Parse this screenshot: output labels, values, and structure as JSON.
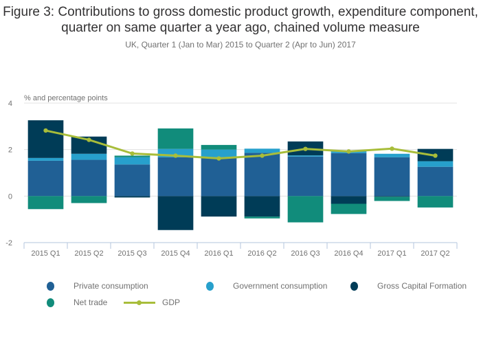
{
  "chart_data": {
    "type": "bar",
    "stacked": true,
    "title": "Figure 3: Contributions to gross domestic product growth, expenditure component, quarter on same quarter a year ago, chained volume measure",
    "subtitle": "UK, Quarter 1 (Jan to Mar) 2015 to Quarter 2 (Apr to Jun) 2017",
    "xlabel": "",
    "ylabel": "% and percentage points",
    "ylim": [
      -2,
      4
    ],
    "yticks": [
      -2,
      0,
      2,
      4
    ],
    "grid": true,
    "legend_position": "bottom",
    "categories": [
      "2015 Q1",
      "2015 Q2",
      "2015 Q3",
      "2015 Q4",
      "2016 Q1",
      "2016 Q2",
      "2016 Q3",
      "2016 Q4",
      "2017 Q1",
      "2017 Q2"
    ],
    "series": [
      {
        "name": "Private consumption",
        "color": "#206095",
        "type": "bar",
        "values": [
          1.52,
          1.56,
          1.36,
          1.67,
          1.67,
          1.86,
          1.7,
          1.85,
          1.67,
          1.26
        ]
      },
      {
        "name": "Government consumption",
        "color": "#27a0cc",
        "type": "bar",
        "values": [
          0.12,
          0.26,
          0.31,
          0.36,
          0.33,
          0.18,
          0.05,
          0.09,
          0.15,
          0.24
        ]
      },
      {
        "name": "Gross Capital Formation",
        "color": "#003c57",
        "type": "bar",
        "values": [
          1.62,
          0.74,
          -0.06,
          -1.46,
          -0.88,
          -0.88,
          0.6,
          -0.33,
          -0.03,
          0.53
        ]
      },
      {
        "name": "Net trade",
        "color": "#118c7b",
        "type": "bar",
        "values": [
          -0.56,
          -0.3,
          0.07,
          0.88,
          0.2,
          -0.08,
          -1.13,
          -0.44,
          -0.18,
          -0.49
        ]
      },
      {
        "name": "GDP",
        "color": "#a8bd3a",
        "type": "line",
        "values": [
          2.82,
          2.42,
          1.83,
          1.74,
          1.62,
          1.74,
          2.03,
          1.92,
          2.04,
          1.74
        ]
      }
    ]
  }
}
